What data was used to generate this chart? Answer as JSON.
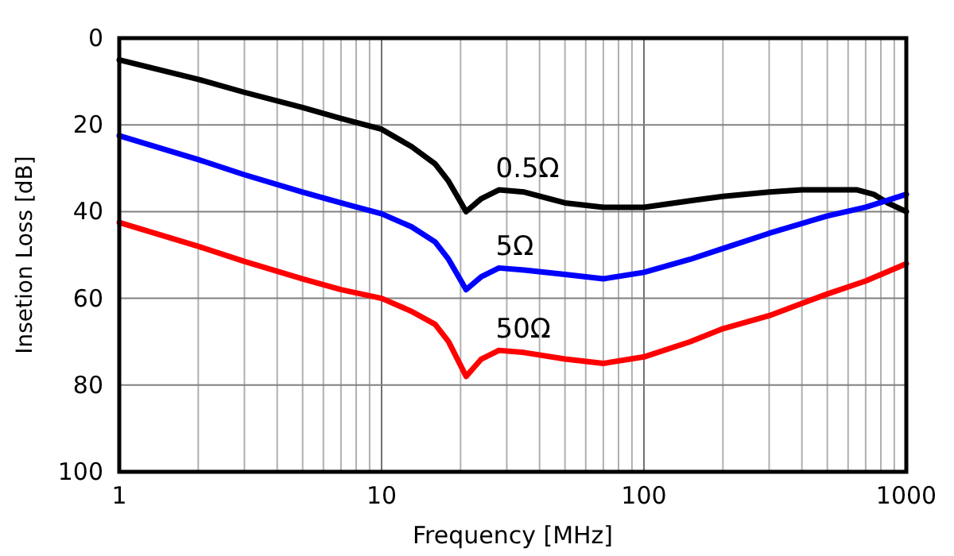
{
  "chart_data": {
    "type": "line",
    "xlabel": "Frequency  [MHz]",
    "ylabel": "Insetion Loss  [dB]",
    "log": "x",
    "grid": true,
    "legend": false,
    "line_style": "solid",
    "xlim": [
      1,
      1000
    ],
    "ylim": [
      100,
      0
    ],
    "xticks": [
      1,
      {
        "value": 2,
        "label": null
      },
      {
        "value": 3,
        "label": null
      },
      {
        "value": 4,
        "label": null
      },
      {
        "value": 5,
        "label": null
      },
      {
        "value": 6,
        "label": null
      },
      {
        "value": 7,
        "label": null
      },
      {
        "value": 8,
        "label": null
      },
      {
        "value": 9,
        "label": null
      },
      10,
      {
        "value": 20,
        "label": null
      },
      {
        "value": 30,
        "label": null
      },
      {
        "value": 40,
        "label": null
      },
      {
        "value": 50,
        "label": null
      },
      {
        "value": 60,
        "label": null
      },
      {
        "value": 70,
        "label": null
      },
      {
        "value": 80,
        "label": null
      },
      {
        "value": 90,
        "label": null
      },
      100,
      {
        "value": 200,
        "label": null
      },
      {
        "value": 300,
        "label": null
      },
      {
        "value": 400,
        "label": null
      },
      {
        "value": 500,
        "label": null
      },
      {
        "value": 600,
        "label": null
      },
      {
        "value": 700,
        "label": null
      },
      {
        "value": 800,
        "label": null
      },
      {
        "value": 900,
        "label": null
      },
      1000
    ],
    "yticks": [
      0,
      20,
      40,
      60,
      80,
      100
    ],
    "series": [
      {
        "name": "0.5Ω",
        "color": "#000000",
        "x": [
          1,
          2,
          3,
          5,
          7,
          10,
          13,
          16,
          18,
          21,
          24,
          28,
          35,
          50,
          70,
          100,
          150,
          200,
          300,
          400,
          500,
          650,
          750,
          850,
          1000
        ],
        "values": [
          5,
          9.5,
          12.5,
          16,
          18.5,
          21,
          25,
          29,
          33,
          40,
          37,
          35,
          35.5,
          38,
          39,
          39,
          37.5,
          36.5,
          35.5,
          35,
          35,
          35,
          36,
          38,
          40
        ]
      },
      {
        "name": "5Ω",
        "color": "#0000ff",
        "x": [
          1,
          2,
          3,
          5,
          7,
          10,
          13,
          16,
          18,
          21,
          24,
          28,
          35,
          50,
          70,
          100,
          150,
          200,
          300,
          500,
          700,
          1000
        ],
        "values": [
          22.5,
          28,
          31.5,
          35.5,
          38,
          40.5,
          43.5,
          47,
          51,
          58,
          55,
          53,
          53.5,
          54.5,
          55.5,
          54,
          51,
          48.5,
          45,
          41,
          39,
          36
        ]
      },
      {
        "name": "50Ω",
        "color": "#ff0000",
        "x": [
          1,
          2,
          3,
          5,
          7,
          10,
          13,
          16,
          18,
          21,
          24,
          28,
          35,
          50,
          70,
          100,
          150,
          200,
          300,
          500,
          700,
          1000
        ],
        "values": [
          42.5,
          48,
          51.5,
          55.5,
          58,
          60,
          63,
          66,
          70,
          78,
          74,
          72,
          72.5,
          74,
          75,
          73.5,
          70,
          67,
          64,
          59,
          56,
          52
        ]
      }
    ]
  }
}
